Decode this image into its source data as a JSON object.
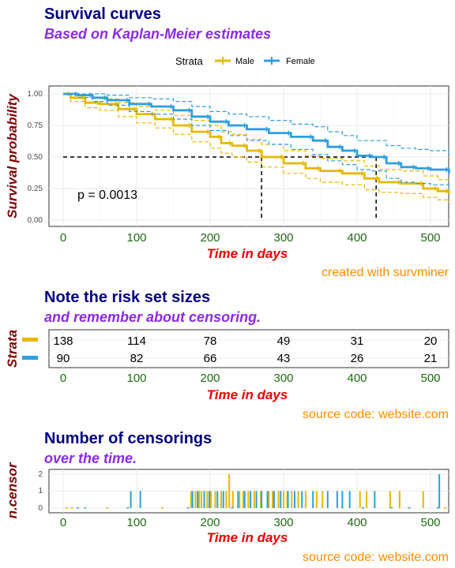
{
  "colors": {
    "male": "#E7B800",
    "female": "#2E9FDF",
    "title": "#000080",
    "subtitle": "#8A2BE2",
    "axis_title_x": "#EE0000",
    "axis_title_y": "#800000",
    "x_ticks": "#1E6B12",
    "caption": "#FF8C00"
  },
  "legend": {
    "title": "Strata",
    "entries": [
      "Male",
      "Female"
    ],
    "placement": "top"
  },
  "survival_panel": {
    "title": "Survival curves",
    "subtitle": "Based on Kaplan-Meier estimates",
    "xlabel": "Time in days",
    "ylabel": "Survival probability",
    "caption": "created with survminer",
    "pvalue_text": "p = 0.0013",
    "y_ticks": [
      "0.00",
      "0.25",
      "0.50",
      "0.75",
      "1.00"
    ],
    "x_ticks": [
      "0",
      "100",
      "200",
      "300",
      "400",
      "500"
    ]
  },
  "risk_panel": {
    "title": "Note the risk set sizes",
    "subtitle": "and remember about censoring.",
    "ylabel": "Strata",
    "xlabel": "Time in days",
    "caption": "source code: website.com",
    "x_ticks": [
      "0",
      "100",
      "200",
      "300",
      "400",
      "500"
    ],
    "rows": [
      {
        "stratum": "Male",
        "values": [
          "138",
          "114",
          "78",
          "49",
          "31",
          "20"
        ]
      },
      {
        "stratum": "Female",
        "values": [
          "90",
          "82",
          "66",
          "43",
          "26",
          "21"
        ]
      }
    ]
  },
  "censor_panel": {
    "title": "Number of censorings",
    "subtitle": "over the time.",
    "ylabel": "n.censor",
    "xlabel": "Time in days",
    "caption": "source code: website.com",
    "y_ticks": [
      "0",
      "1",
      "2"
    ],
    "x_ticks": [
      "0",
      "100",
      "200",
      "300",
      "400",
      "500"
    ]
  },
  "chart_data": [
    {
      "type": "line",
      "xlim": [
        0,
        525
      ],
      "ylim": [
        0,
        1
      ],
      "grid": true,
      "median_survival": {
        "male": 270,
        "female": 426
      },
      "series": [
        {
          "name": "Male",
          "color": "#E7B800",
          "x": [
            0,
            10,
            30,
            50,
            75,
            100,
            125,
            150,
            175,
            200,
            215,
            230,
            250,
            270,
            300,
            330,
            350,
            380,
            410,
            430,
            460,
            490,
            510,
            525
          ],
          "y": [
            1.0,
            0.97,
            0.93,
            0.92,
            0.88,
            0.84,
            0.8,
            0.75,
            0.7,
            0.66,
            0.61,
            0.59,
            0.55,
            0.5,
            0.45,
            0.41,
            0.39,
            0.37,
            0.33,
            0.3,
            0.29,
            0.25,
            0.23,
            0.21
          ],
          "lower": [
            1.0,
            0.94,
            0.89,
            0.87,
            0.82,
            0.77,
            0.73,
            0.68,
            0.62,
            0.57,
            0.53,
            0.5,
            0.46,
            0.42,
            0.37,
            0.33,
            0.3,
            0.28,
            0.24,
            0.22,
            0.21,
            0.18,
            0.16,
            0.14
          ],
          "upper": [
            1.0,
            0.99,
            0.97,
            0.96,
            0.93,
            0.9,
            0.87,
            0.83,
            0.79,
            0.75,
            0.7,
            0.68,
            0.64,
            0.6,
            0.55,
            0.51,
            0.49,
            0.47,
            0.43,
            0.4,
            0.39,
            0.35,
            0.32,
            0.3
          ]
        },
        {
          "name": "Female",
          "color": "#2E9FDF",
          "x": [
            0,
            20,
            40,
            60,
            90,
            120,
            150,
            175,
            200,
            225,
            250,
            280,
            310,
            340,
            360,
            380,
            400,
            420,
            440,
            460,
            480,
            500,
            525
          ],
          "y": [
            1.0,
            0.99,
            0.97,
            0.95,
            0.92,
            0.9,
            0.87,
            0.82,
            0.78,
            0.75,
            0.72,
            0.69,
            0.66,
            0.63,
            0.58,
            0.55,
            0.51,
            0.5,
            0.45,
            0.42,
            0.41,
            0.4,
            0.37
          ],
          "lower": [
            1.0,
            0.97,
            0.94,
            0.91,
            0.86,
            0.84,
            0.8,
            0.75,
            0.71,
            0.67,
            0.63,
            0.6,
            0.56,
            0.52,
            0.47,
            0.44,
            0.4,
            0.39,
            0.33,
            0.3,
            0.29,
            0.28,
            0.24
          ],
          "upper": [
            1.0,
            1.0,
            1.0,
            0.99,
            0.97,
            0.96,
            0.94,
            0.9,
            0.86,
            0.84,
            0.82,
            0.79,
            0.76,
            0.74,
            0.7,
            0.67,
            0.63,
            0.63,
            0.59,
            0.57,
            0.56,
            0.55,
            0.52
          ]
        }
      ]
    },
    {
      "type": "bar",
      "xlim": [
        0,
        525
      ],
      "ylim": [
        0,
        2
      ],
      "series": [
        {
          "name": "Male",
          "color": "#E7B800",
          "x": [
            5,
            12,
            60,
            135,
            174,
            180,
            185,
            188,
            196,
            201,
            207,
            215,
            222,
            226,
            231,
            240,
            245,
            252,
            260,
            269,
            280,
            285,
            293,
            300,
            305,
            311,
            320,
            330,
            345,
            353,
            380,
            404,
            413,
            445,
            458,
            490,
            520
          ],
          "count": [
            0,
            0,
            0,
            0,
            1,
            1,
            1,
            1,
            1,
            1,
            1,
            1,
            1,
            2,
            1,
            1,
            1,
            1,
            1,
            1,
            1,
            1,
            1,
            1,
            1,
            1,
            1,
            1,
            1,
            1,
            0,
            1,
            1,
            1,
            1,
            1,
            0
          ]
        },
        {
          "name": "Female",
          "color": "#2E9FDF",
          "x": [
            20,
            30,
            88,
            92,
            105,
            170,
            176,
            183,
            192,
            199,
            210,
            218,
            230,
            238,
            247,
            255,
            263,
            270,
            278,
            287,
            296,
            306,
            315,
            325,
            340,
            360,
            373,
            380,
            390,
            408,
            424,
            447,
            471,
            510,
            512
          ],
          "count": [
            0,
            0,
            0,
            1,
            1,
            0,
            1,
            1,
            1,
            1,
            1,
            1,
            0,
            1,
            1,
            1,
            1,
            1,
            1,
            1,
            1,
            1,
            1,
            1,
            1,
            1,
            1,
            1,
            1,
            0,
            1,
            0,
            0,
            0,
            2
          ]
        }
      ]
    }
  ]
}
